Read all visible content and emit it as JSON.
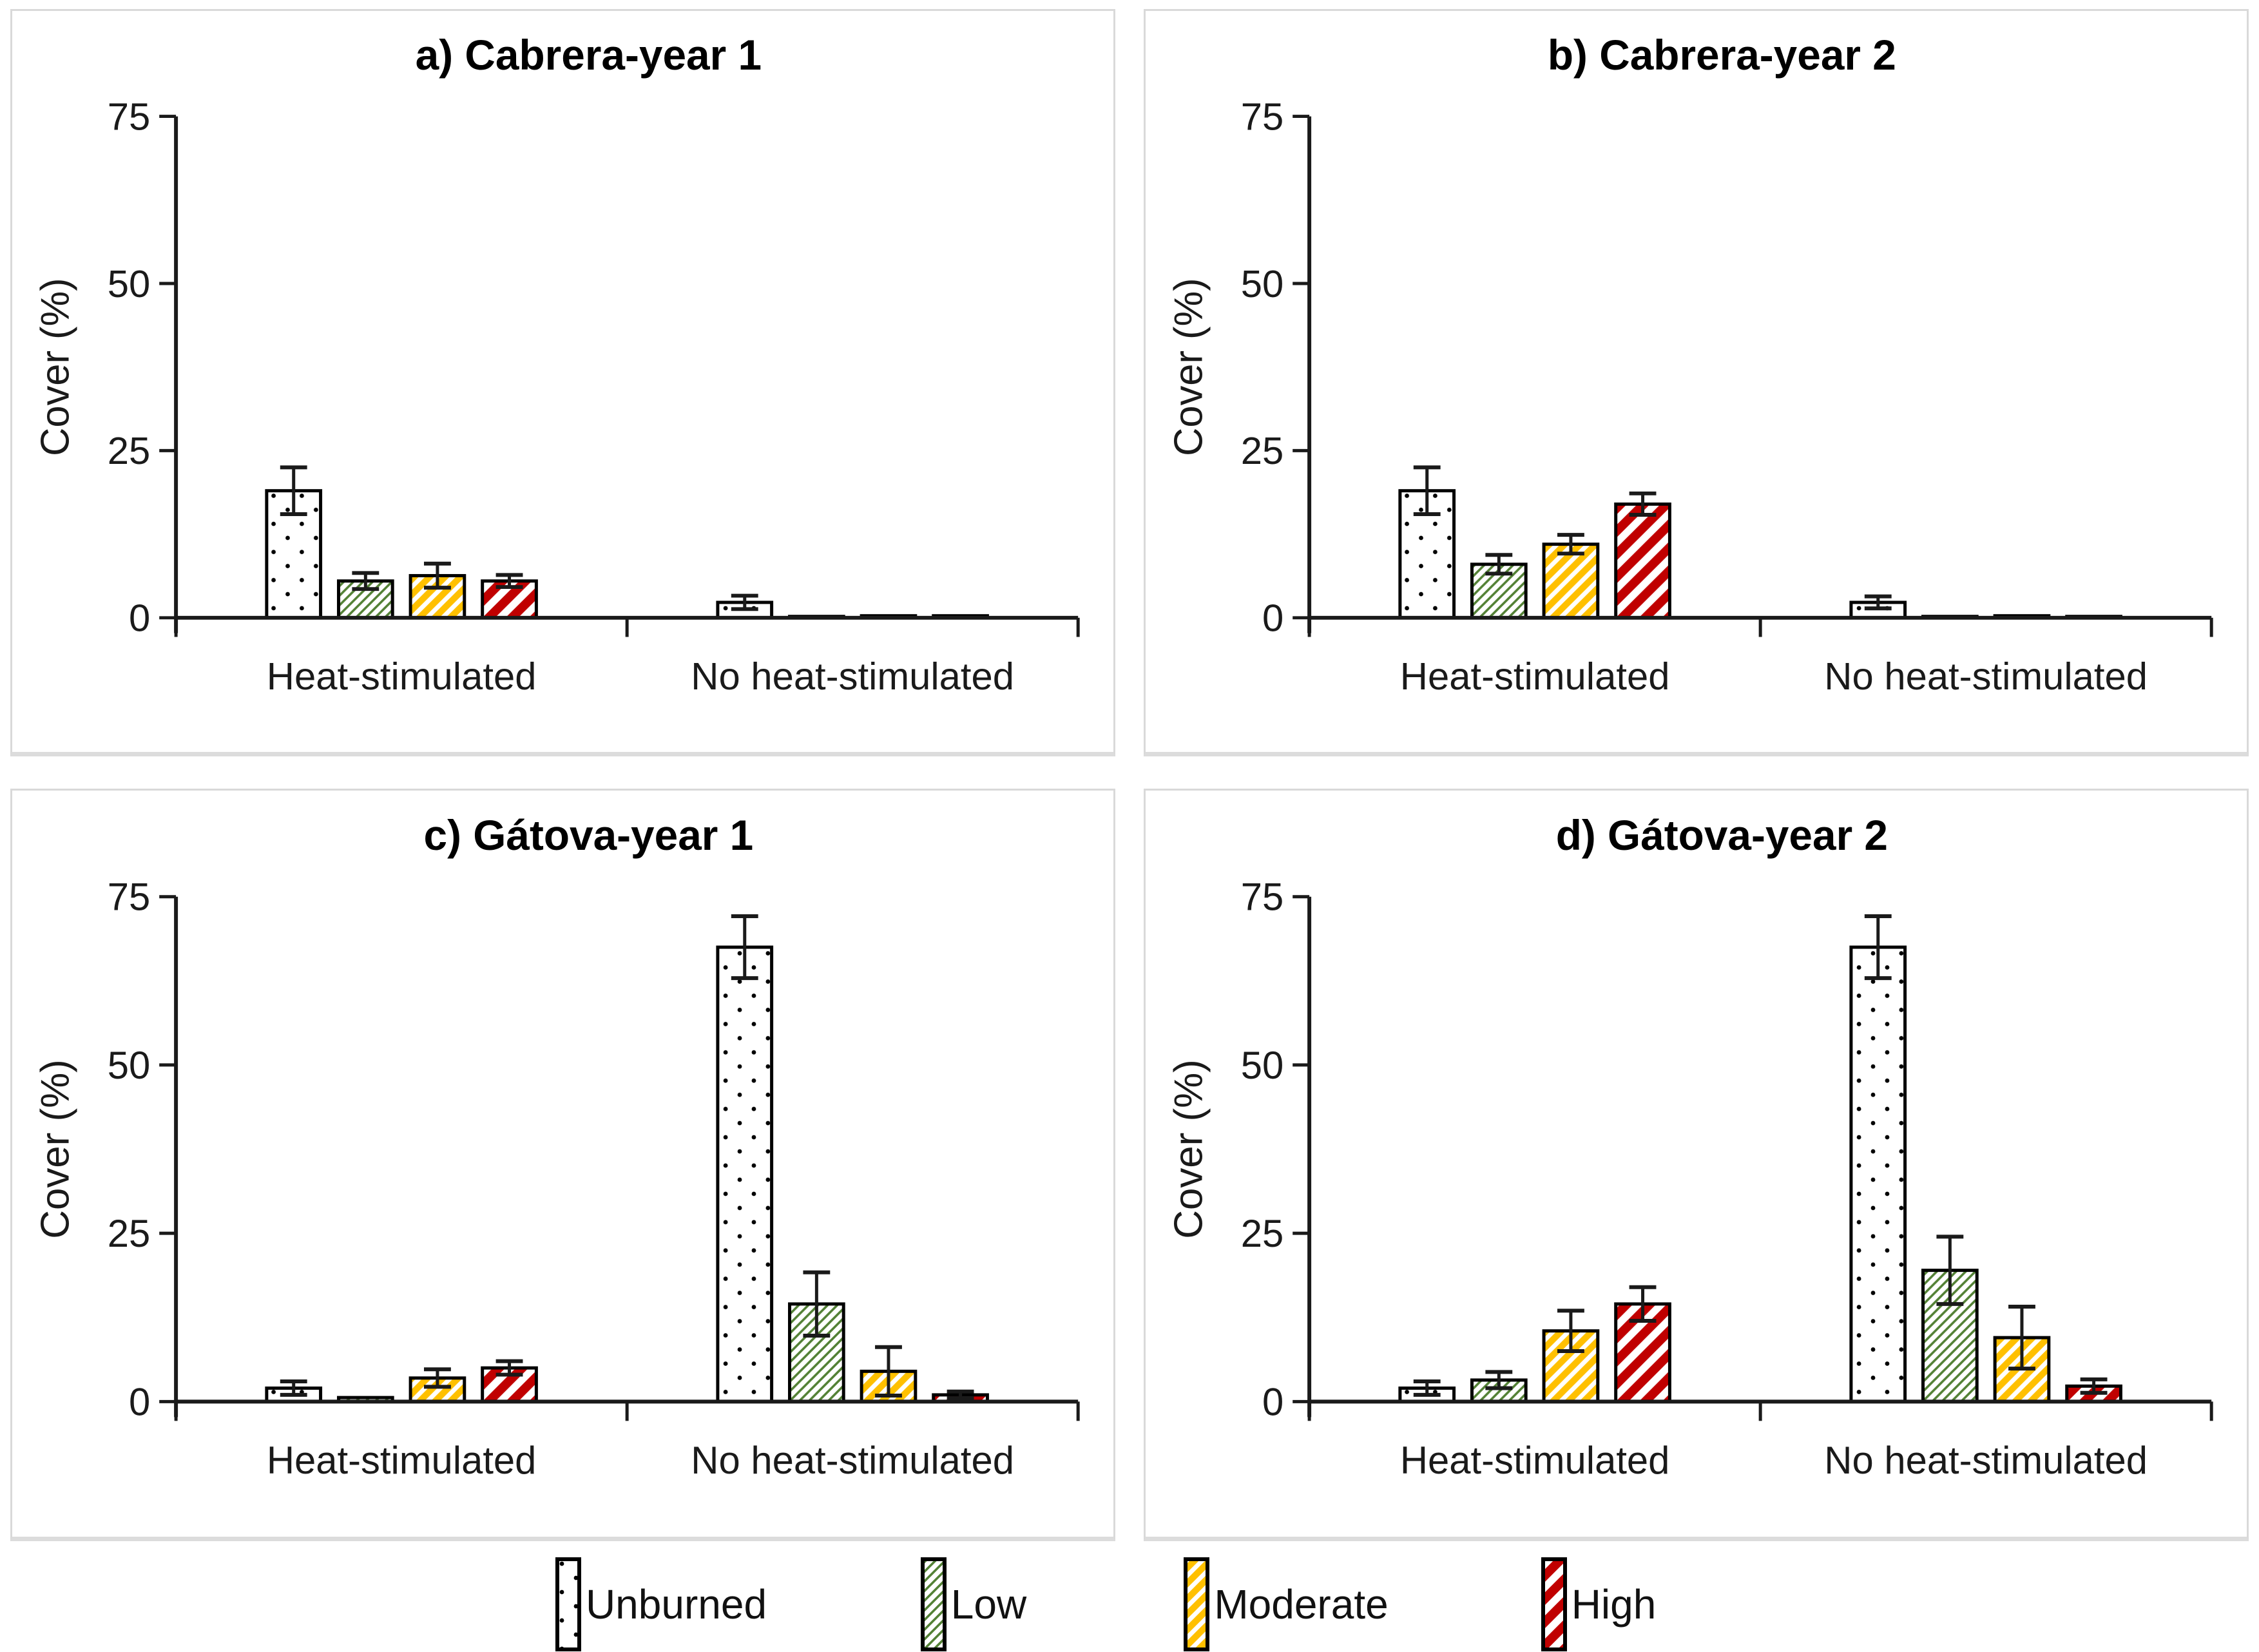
{
  "figure": {
    "background": "#ffffff",
    "panel_border": "#d9d9d9"
  },
  "colors": {
    "axis": "#1a1a1a",
    "text": "#1a1a1a",
    "title": "#000000",
    "bar_outline": "#000000",
    "dot": "#000000",
    "low": "#538135",
    "moderate": "#FFC000",
    "high": "#C00000"
  },
  "axis": {
    "ylabel": "Cover (%)",
    "yticks": [
      0,
      25,
      50,
      75
    ],
    "ymax": 75,
    "categories": [
      "Heat-stimulated",
      "No heat-stimulated"
    ]
  },
  "legend": {
    "items": [
      {
        "label": "Unburned",
        "pattern": "dots"
      },
      {
        "label": "Low",
        "pattern": "low"
      },
      {
        "label": "Moderate",
        "pattern": "moderate"
      },
      {
        "label": "High",
        "pattern": "high"
      }
    ]
  },
  "chart_data": [
    {
      "id": "a",
      "type": "bar",
      "title": "a) Cabrera-year 1",
      "ylabel": "Cover (%)",
      "ylim": [
        0,
        75
      ],
      "yticks": [
        0,
        25,
        50,
        75
      ],
      "categories": [
        "Heat-stimulated",
        "No heat-stimulated"
      ],
      "series": [
        {
          "name": "Unburned",
          "pattern": "dots",
          "values": [
            19.0,
            2.3
          ],
          "errors": [
            3.5,
            1.0
          ]
        },
        {
          "name": "Low",
          "pattern": "low",
          "values": [
            5.5,
            0.2
          ],
          "errors": [
            1.2,
            0.1
          ]
        },
        {
          "name": "Moderate",
          "pattern": "moderate",
          "values": [
            6.3,
            0.3
          ],
          "errors": [
            1.8,
            0.2
          ]
        },
        {
          "name": "High",
          "pattern": "high",
          "values": [
            5.5,
            0.3
          ],
          "errors": [
            0.9,
            0.2
          ]
        }
      ]
    },
    {
      "id": "b",
      "type": "bar",
      "title": "b) Cabrera-year 2",
      "ylabel": "Cover (%)",
      "ylim": [
        0,
        75
      ],
      "yticks": [
        0,
        25,
        50,
        75
      ],
      "categories": [
        "Heat-stimulated",
        "No heat-stimulated"
      ],
      "series": [
        {
          "name": "Unburned",
          "pattern": "dots",
          "values": [
            19.0,
            2.3
          ],
          "errors": [
            3.5,
            0.9
          ]
        },
        {
          "name": "Low",
          "pattern": "low",
          "values": [
            8.0,
            0.2
          ],
          "errors": [
            1.4,
            0.1
          ]
        },
        {
          "name": "Moderate",
          "pattern": "moderate",
          "values": [
            11.0,
            0.3
          ],
          "errors": [
            1.4,
            0.2
          ]
        },
        {
          "name": "High",
          "pattern": "high",
          "values": [
            17.0,
            0.2
          ],
          "errors": [
            1.6,
            0.1
          ]
        }
      ]
    },
    {
      "id": "c",
      "type": "bar",
      "title": "c) Gátova-year 1",
      "ylabel": "Cover (%)",
      "ylim": [
        0,
        75
      ],
      "yticks": [
        0,
        25,
        50,
        75
      ],
      "categories": [
        "Heat-stimulated",
        "No heat-stimulated"
      ],
      "series": [
        {
          "name": "Unburned",
          "pattern": "dots",
          "values": [
            2.0,
            67.5
          ],
          "errors": [
            1.0,
            4.6
          ]
        },
        {
          "name": "Low",
          "pattern": "low",
          "values": [
            0.6,
            14.5
          ],
          "errors": [
            0.3,
            4.7
          ]
        },
        {
          "name": "Moderate",
          "pattern": "moderate",
          "values": [
            3.5,
            4.5
          ],
          "errors": [
            1.3,
            3.6
          ]
        },
        {
          "name": "High",
          "pattern": "high",
          "values": [
            5.0,
            1.0
          ],
          "errors": [
            1.0,
            0.5
          ]
        }
      ]
    },
    {
      "id": "d",
      "type": "bar",
      "title": "d) Gátova-year 2",
      "ylabel": "Cover (%)",
      "ylim": [
        0,
        75
      ],
      "yticks": [
        0,
        25,
        50,
        75
      ],
      "categories": [
        "Heat-stimulated",
        "No heat-stimulated"
      ],
      "series": [
        {
          "name": "Unburned",
          "pattern": "dots",
          "values": [
            2.0,
            67.5
          ],
          "errors": [
            1.0,
            4.6
          ]
        },
        {
          "name": "Low",
          "pattern": "low",
          "values": [
            3.2,
            19.5
          ],
          "errors": [
            1.2,
            5.0
          ]
        },
        {
          "name": "Moderate",
          "pattern": "moderate",
          "values": [
            10.5,
            9.5
          ],
          "errors": [
            3.0,
            4.6
          ]
        },
        {
          "name": "High",
          "pattern": "high",
          "values": [
            14.5,
            2.3
          ],
          "errors": [
            2.5,
            1.0
          ]
        }
      ]
    }
  ]
}
